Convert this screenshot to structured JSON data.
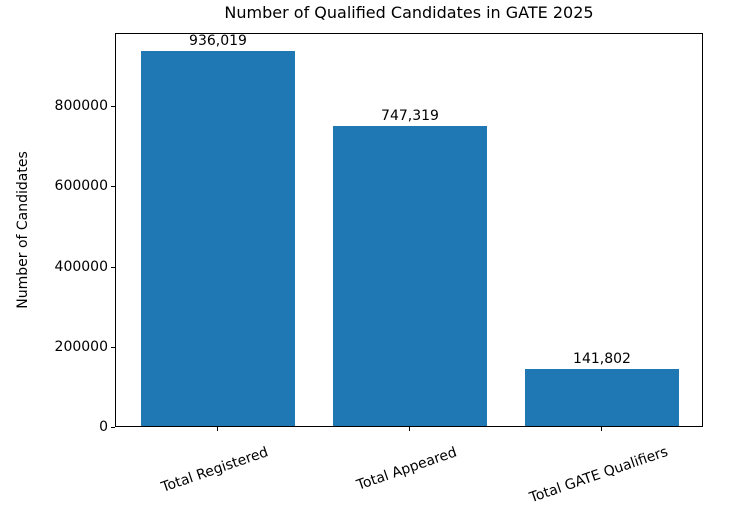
{
  "chart_data": {
    "type": "bar",
    "title": "Number of Qualified Candidates in GATE 2025",
    "xlabel": "",
    "ylabel": "Number of Candidates",
    "categories": [
      "Total Registered",
      "Total Appeared",
      "Total GATE Qualifiers"
    ],
    "values": [
      936019,
      747319,
      141802
    ],
    "value_labels": [
      "936,019",
      "747,319",
      "141,802"
    ],
    "yticks": [
      0,
      200000,
      400000,
      600000,
      800000
    ],
    "ytick_labels": [
      "0",
      "200000",
      "400000",
      "600000",
      "800000"
    ],
    "ylim": [
      0,
      982820
    ],
    "bar_color": "#1f77b4",
    "text_color": "#000000",
    "background_color": "#ffffff",
    "grid": false,
    "legend_position": "none",
    "xtick_rotation_deg": 19
  }
}
